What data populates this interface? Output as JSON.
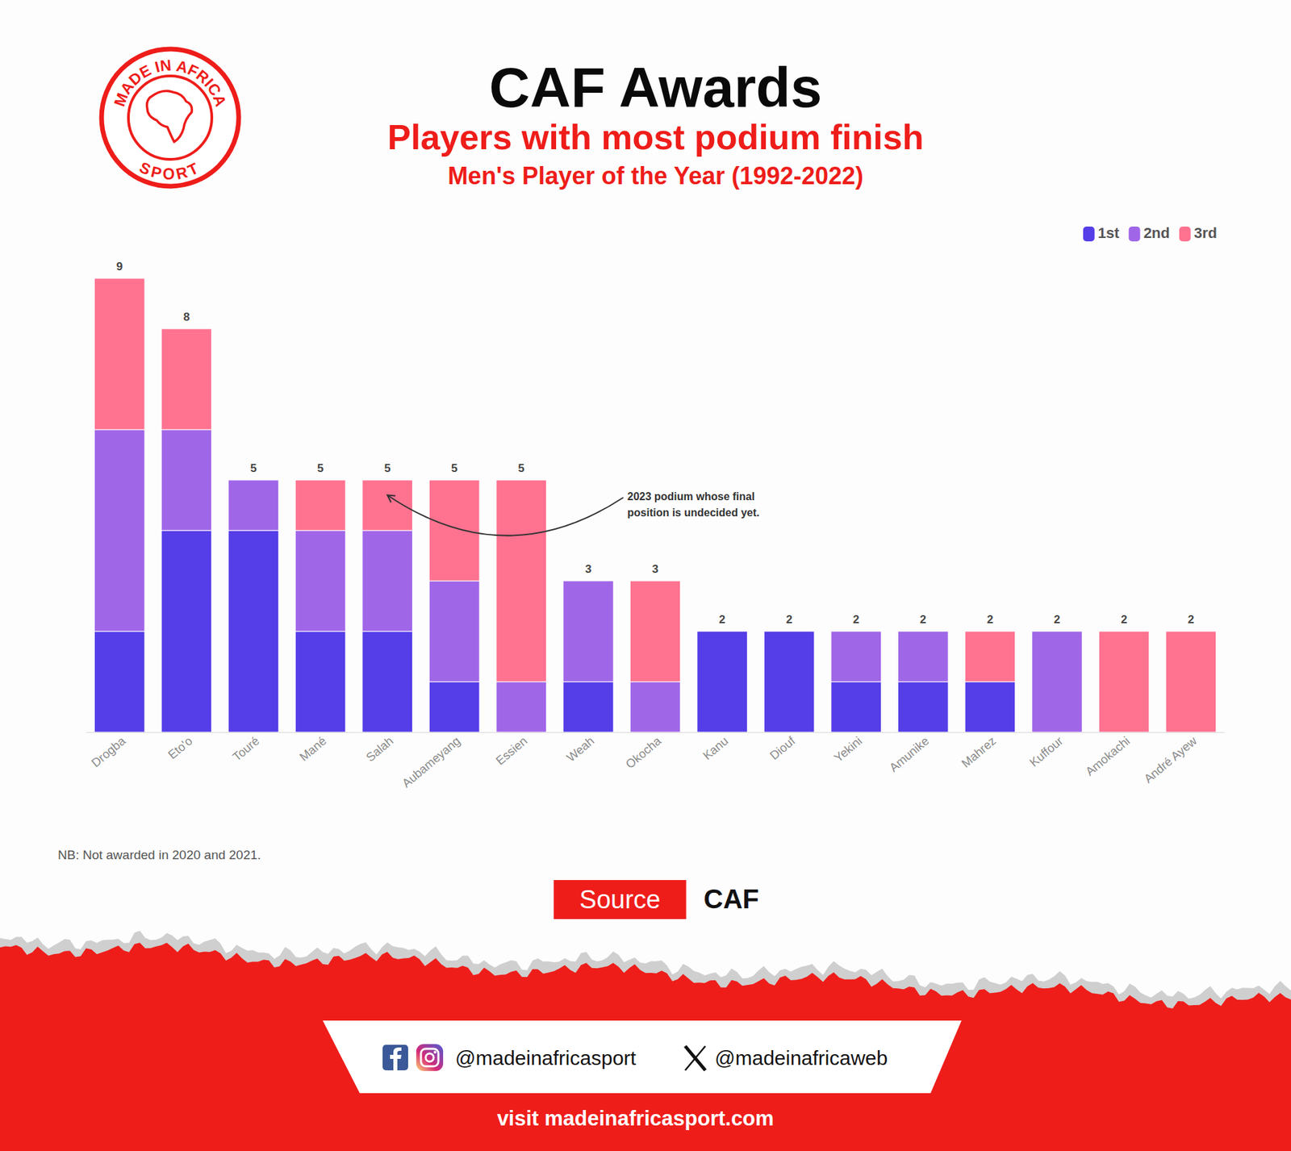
{
  "chart_data": {
    "type": "bar",
    "stacked": true,
    "title": "CAF Awards",
    "subtitle": [
      "Players with most podium finish",
      "Men's Player of the Year (1992-2022)"
    ],
    "categories": [
      "Drogba",
      "Eto'o",
      "Touré",
      "Mané",
      "Salah",
      "Aubameyang",
      "Essien",
      "Weah",
      "Okocha",
      "Kanu",
      "Diouf",
      "Yekini",
      "Amunike",
      "Mahrez",
      "Kuffour",
      "Amokachi",
      "André Ayew"
    ],
    "series": [
      {
        "name": "1st",
        "color": "#553de8",
        "values": [
          2,
          4,
          4,
          2,
          2,
          1,
          0,
          1,
          0,
          2,
          2,
          1,
          1,
          1,
          0,
          0,
          0
        ]
      },
      {
        "name": "2nd",
        "color": "#a066e8",
        "values": [
          4,
          2,
          1,
          2,
          2,
          2,
          1,
          2,
          1,
          0,
          0,
          1,
          1,
          0,
          2,
          0,
          0
        ]
      },
      {
        "name": "3rd",
        "color": "#ff7290",
        "values": [
          3,
          2,
          0,
          1,
          1,
          2,
          4,
          0,
          2,
          0,
          0,
          0,
          0,
          1,
          0,
          2,
          2
        ]
      }
    ],
    "totals": [
      9,
      8,
      5,
      5,
      5,
      5,
      5,
      3,
      3,
      2,
      2,
      2,
      2,
      2,
      2,
      2,
      2
    ],
    "ylim": [
      0,
      9
    ],
    "tick_labels": "x",
    "grid": false,
    "legend": "top-right",
    "annotations": [
      {
        "text": "2023 podium whose final position is undecided yet.",
        "category": "Salah",
        "series": "3rd"
      }
    ],
    "note": "NB: Not awarded in 2020 and 2021."
  },
  "page": {
    "logo_top": "MADE IN AFRICA",
    "logo_bottom": "SPORT",
    "source_label": "Source",
    "source": "CAF",
    "handle_1": "@madeinafricasport",
    "handle_2": "@madeinafricaweb",
    "website": "visit madeinafricasport.com"
  }
}
